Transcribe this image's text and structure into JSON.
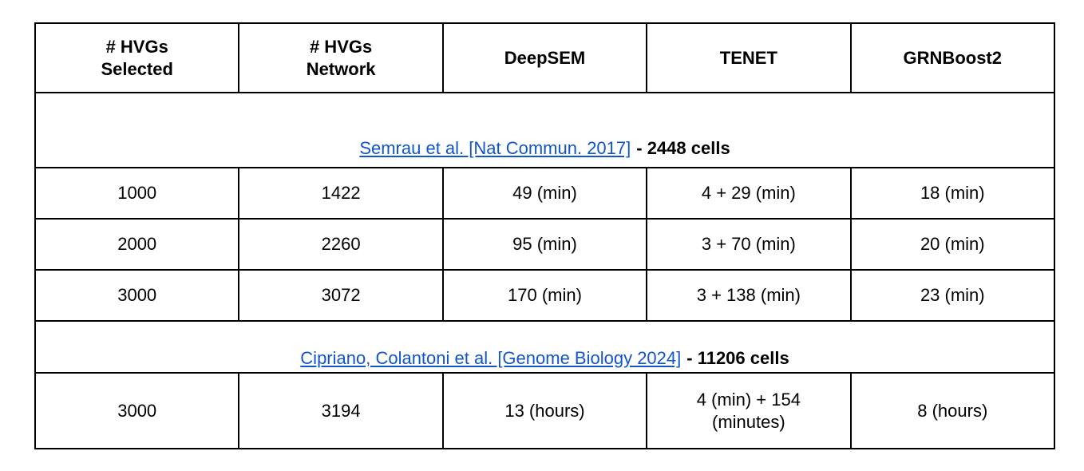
{
  "link_color": "#1155cc",
  "border_color": "#000000",
  "table": {
    "headers": [
      "# HVGs\nSelected",
      "# HVGs\nNetwork",
      "DeepSEM",
      "TENET",
      "GRNBoost2"
    ],
    "groups": [
      {
        "link_text": "Semrau et al. [Nat Commun. 2017]",
        "suffix": "- 2448 cells"
      },
      {
        "link_text": "Cipriano, Colantoni et al. [Genome Biology 2024]",
        "suffix": "- 11206 cells"
      }
    ],
    "rows": [
      {
        "cells": [
          "1000",
          "1422",
          "49 (min)",
          "4 + 29 (min)",
          "18 (min)"
        ]
      },
      {
        "cells": [
          "2000",
          "2260",
          "95 (min)",
          "3 + 70 (min)",
          "20 (min)"
        ]
      },
      {
        "cells": [
          "3000",
          "3072",
          "170 (min)",
          "3 + 138 (min)",
          "23 (min)"
        ]
      },
      {
        "cells": [
          "3000",
          "3194",
          "13 (hours)",
          "4 (min) + 154\n(minutes)",
          "8 (hours)"
        ]
      }
    ]
  }
}
